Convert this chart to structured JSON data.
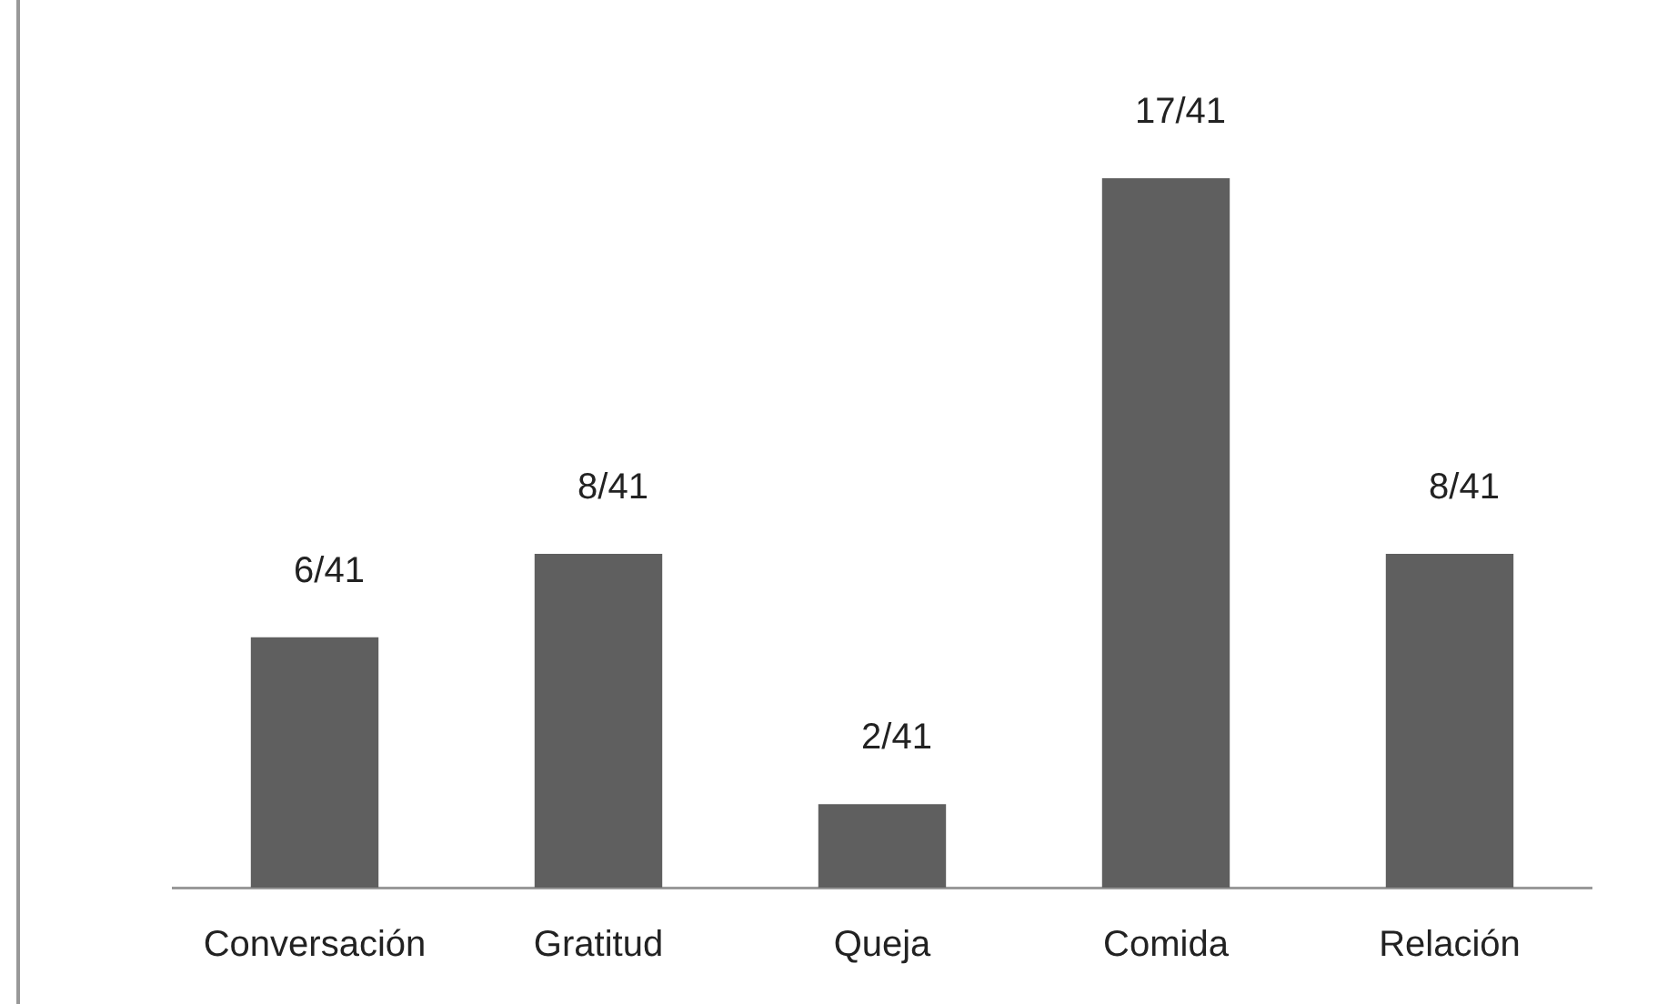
{
  "chart_data": {
    "type": "bar",
    "categories": [
      "Conversación",
      "Gratitud",
      "Queja",
      "Comida",
      "Relación"
    ],
    "values": [
      6,
      8,
      2,
      17,
      8
    ],
    "value_labels": [
      "6/41",
      "8/41",
      "2/41",
      "17/41",
      "8/41"
    ],
    "color": "#5f5f5f",
    "grid": false,
    "legend": false,
    "tick_labels": "x"
  }
}
